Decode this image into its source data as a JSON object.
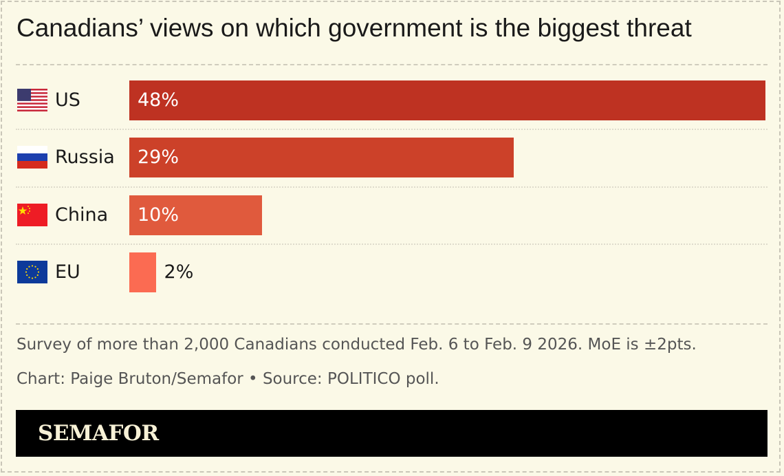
{
  "chart_data": {
    "type": "bar",
    "orientation": "horizontal",
    "title": "Canadians’ views on which government is the biggest threat",
    "categories": [
      "US",
      "Russia",
      "China",
      "EU"
    ],
    "values": [
      48,
      29,
      10,
      2
    ],
    "value_labels": [
      "48%",
      "29%",
      "10%",
      "2%"
    ],
    "flags": [
      "us-flag-icon",
      "russia-flag-icon",
      "china-flag-icon",
      "eu-flag-icon"
    ],
    "colors": [
      "#be3222",
      "#cc4129",
      "#e05a3d",
      "#fb6b52"
    ],
    "xlim": [
      0,
      48
    ],
    "grid": false
  },
  "notes": {
    "survey": "Survey of more than 2,000 Canadians conducted Feb. 6 to Feb. 9 2026. MoE is ±2pts.",
    "credit": "Chart: Paige Bruton/Semafor • Source: POLITICO poll."
  },
  "brand": {
    "logo": "SEMAFOR"
  },
  "colors": {
    "background": "#fbf9e7",
    "banner": "#000000",
    "logo": "#f7f1d6"
  }
}
